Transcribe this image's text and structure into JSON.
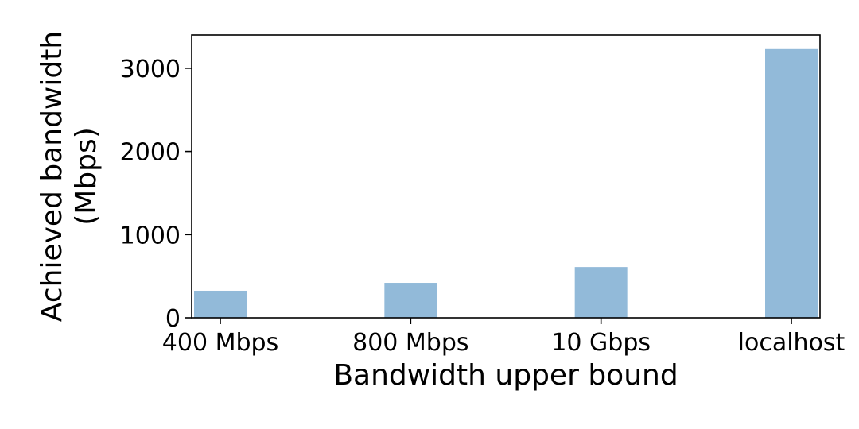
{
  "chart_data": {
    "type": "bar",
    "categories": [
      "400 Mbps",
      "800 Mbps",
      "10 Gbps",
      "localhost"
    ],
    "values": [
      325,
      420,
      610,
      3230
    ],
    "xlabel": "Bandwidth upper bound",
    "ylabel_lines": [
      "Achieved bandwidth",
      "(Mbps)"
    ],
    "ylim": [
      0,
      3400
    ],
    "yticks": [
      0,
      1000,
      2000,
      3000
    ],
    "bar_color": "#92bad9",
    "grid": false,
    "legend": false
  }
}
